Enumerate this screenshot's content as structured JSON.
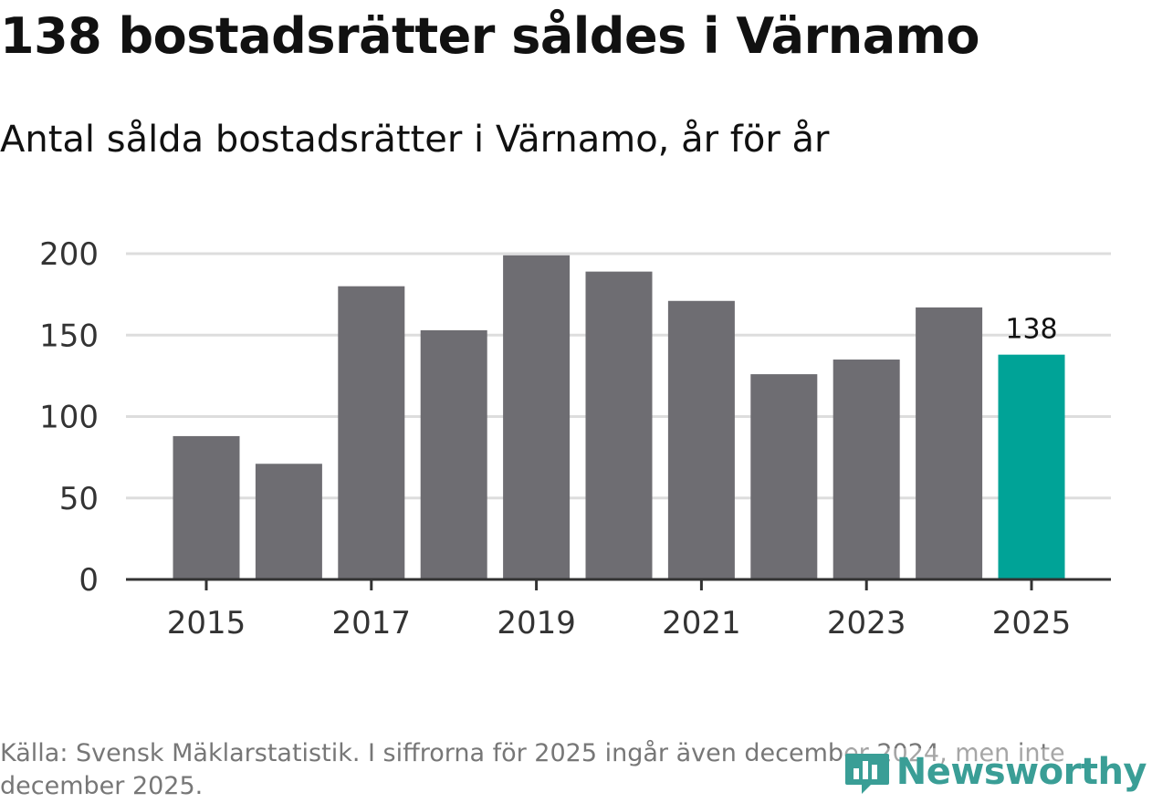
{
  "header": {
    "title": "138 bostadsrätter såldes i Värnamo",
    "subtitle": "Antal sålda bostadsrätter i Värnamo, år för år"
  },
  "footer": {
    "source": "Källa: Svensk Mäklarstatistik. I siffrorna för 2025 ingår även december 2024, men inte december 2025.",
    "brand": "Newsworthy"
  },
  "colors": {
    "bar": "#6e6d72",
    "highlight": "#00a397",
    "grid": "#dddddd",
    "axis": "#333333",
    "brand": "#3a9e96"
  },
  "chart_data": {
    "type": "bar",
    "title": "Antal sålda bostadsrätter i Värnamo, år för år",
    "xlabel": "",
    "ylabel": "",
    "categories": [
      "2015",
      "2016",
      "2017",
      "2018",
      "2019",
      "2020",
      "2021",
      "2022",
      "2023",
      "2024",
      "2025"
    ],
    "values": [
      88,
      71,
      180,
      153,
      199,
      189,
      171,
      126,
      135,
      167,
      138
    ],
    "highlight_index": 10,
    "data_labels": [
      {
        "category": "2025",
        "text": "138"
      }
    ],
    "y_ticks": [
      "0",
      "50",
      "100",
      "150",
      "200"
    ],
    "x_ticks": [
      "2015",
      "2017",
      "2019",
      "2021",
      "2023",
      "2025"
    ],
    "ylim": [
      0,
      200
    ],
    "grid": true
  }
}
